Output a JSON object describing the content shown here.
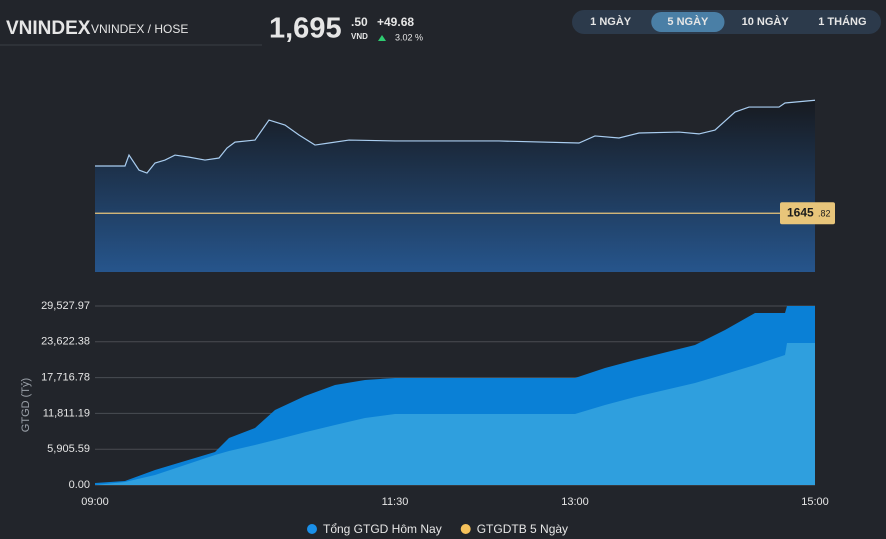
{
  "header": {
    "symbol": "VNINDEX",
    "exchange": "VNINDEX / HOSE",
    "price_int": "1,695",
    "price_dec": ".50",
    "currency": "VND",
    "change": "+49.68",
    "change_pct": "3.02 %"
  },
  "tabs": {
    "items": [
      "1 NGÀY",
      "5 NGÀY",
      "10 NGÀY",
      "1 THÁNG"
    ],
    "active": 1
  },
  "chart_data": [
    {
      "type": "line",
      "color": "#a9cdf0",
      "x": [
        "09:00",
        "09:15",
        "09:17",
        "09:22",
        "09:26",
        "09:30",
        "09:35",
        "09:40",
        "09:47",
        "09:55",
        "10:02",
        "10:06",
        "10:10",
        "10:20",
        "10:27",
        "10:35",
        "10:42",
        "10:50",
        "10:57",
        "11:07",
        "11:30",
        "12:22",
        "13:02",
        "13:10",
        "13:22",
        "13:32",
        "13:52",
        "14:02",
        "14:10",
        "14:20",
        "14:27",
        "14:42",
        "14:45",
        "15:00"
      ],
      "values": [
        1666.6,
        1666.6,
        1671.4,
        1664.8,
        1663.5,
        1667.9,
        1669.2,
        1671.4,
        1670.5,
        1669.2,
        1670.1,
        1674.5,
        1677.1,
        1678.0,
        1686.8,
        1684.6,
        1680.2,
        1675.8,
        1676.7,
        1678.0,
        1677.6,
        1677.6,
        1676.7,
        1679.8,
        1678.9,
        1681.1,
        1681.5,
        1680.7,
        1682.4,
        1690.3,
        1692.5,
        1692.5,
        1694.3,
        1695.5
      ],
      "xlim": [
        "09:00",
        "15:00"
      ],
      "ylim": [
        1620,
        1700
      ],
      "reference_line": {
        "value": 1645.82,
        "color": "#e8c57a",
        "label_int": "1645",
        "label_dec": ".82"
      }
    },
    {
      "type": "area",
      "y_label": "GTGD (Tỷ)",
      "x": [
        "09:00",
        "09:15",
        "09:30",
        "10:00",
        "10:07",
        "10:20",
        "10:30",
        "10:45",
        "11:00",
        "11:15",
        "11:30",
        "13:00",
        "13:15",
        "13:30",
        "14:00",
        "14:15",
        "14:30",
        "14:45",
        "14:46",
        "15:00"
      ],
      "series": [
        {
          "name": "Tổng GTGD Hôm Nay",
          "color": "#1a8fe8",
          "fill": "#0a80d6",
          "values": [
            330,
            660,
            2474,
            5444,
            7753,
            9403,
            12372,
            14681,
            16496,
            17321,
            17651,
            17651,
            19300,
            20620,
            23094,
            25569,
            28373,
            28373,
            29527.97,
            29527.97
          ]
        },
        {
          "name": "GTGDTB 5 Ngày",
          "color": "#f5c15b",
          "fill": "#2f9fde",
          "values": [
            0,
            495,
            1650,
            4949,
            5600,
            6600,
            7423,
            8700,
            9898,
            11052,
            11712,
            11712,
            13197,
            14516,
            16826,
            18300,
            19795,
            21445,
            23424,
            23424
          ]
        }
      ],
      "xlim": [
        "09:00",
        "15:00"
      ],
      "xticks": [
        "09:00",
        "11:30",
        "13:00",
        "15:00"
      ],
      "ylim": [
        0,
        29527.97
      ],
      "yticks": [
        {
          "value": 0,
          "label": "0.00"
        },
        {
          "value": 5905.59,
          "label": "5,905.59"
        },
        {
          "value": 11811.19,
          "label": "11,811.19"
        },
        {
          "value": 17716.78,
          "label": "17,716.78"
        },
        {
          "value": 23622.38,
          "label": "23,622.38"
        },
        {
          "value": 29527.97,
          "label": "29,527.97"
        }
      ],
      "grid": true
    }
  ]
}
